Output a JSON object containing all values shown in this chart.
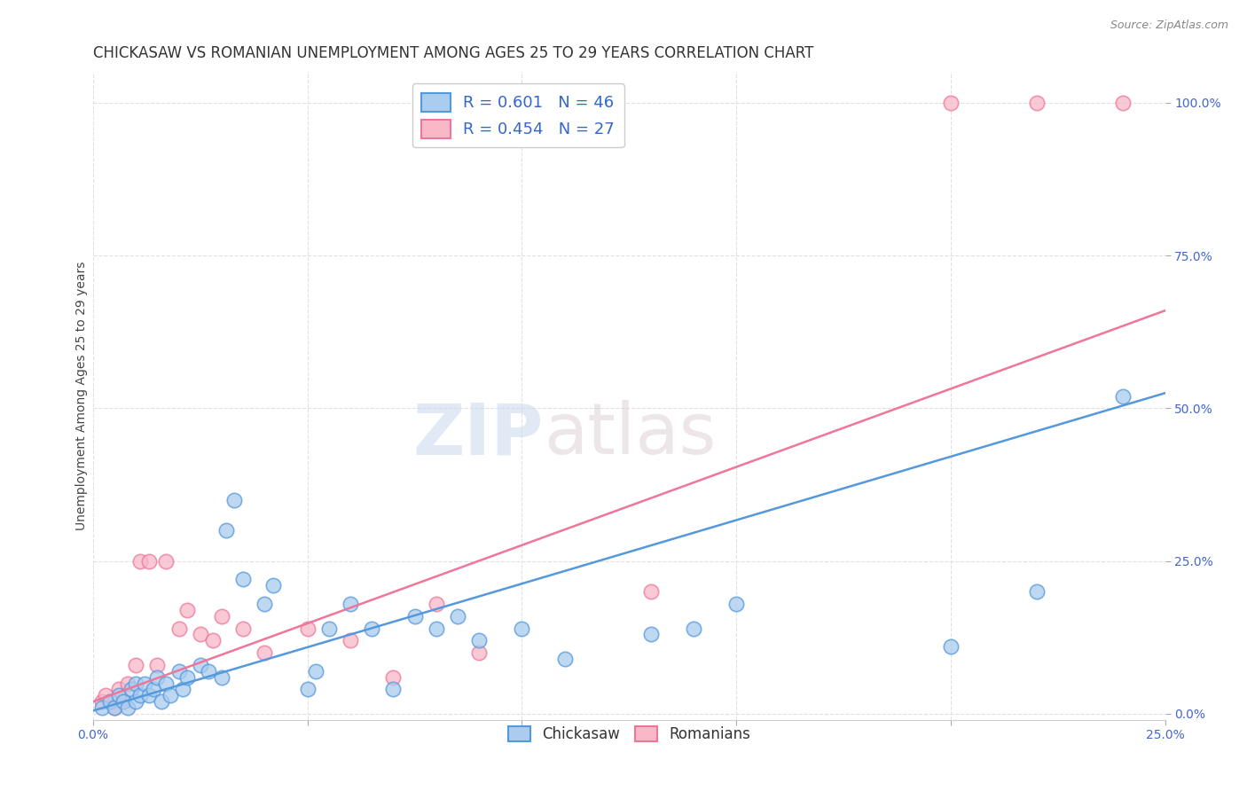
{
  "title": "CHICKASAW VS ROMANIAN UNEMPLOYMENT AMONG AGES 25 TO 29 YEARS CORRELATION CHART",
  "source": "Source: ZipAtlas.com",
  "ylabel": "Unemployment Among Ages 25 to 29 years",
  "xlim": [
    0.0,
    0.25
  ],
  "ylim": [
    -0.01,
    1.05
  ],
  "xticks": [
    0.0,
    0.05,
    0.1,
    0.15,
    0.2,
    0.25
  ],
  "xticklabels": [
    "0.0%",
    "",
    "",
    "",
    "",
    "25.0%"
  ],
  "yticks": [
    0.0,
    0.25,
    0.5,
    0.75,
    1.0
  ],
  "yticklabels": [
    "0.0%",
    "25.0%",
    "50.0%",
    "75.0%",
    "100.0%"
  ],
  "blue_color": "#aaccee",
  "pink_color": "#f8b8c8",
  "blue_line_color": "#5599dd",
  "pink_line_color": "#ee7799",
  "legend_label1": "Chickasaw",
  "legend_label2": "Romanians",
  "watermark_zip": "ZIP",
  "watermark_atlas": "atlas",
  "blue_scatter_x": [
    0.002,
    0.004,
    0.005,
    0.006,
    0.007,
    0.008,
    0.009,
    0.01,
    0.01,
    0.011,
    0.012,
    0.013,
    0.014,
    0.015,
    0.016,
    0.017,
    0.018,
    0.02,
    0.021,
    0.022,
    0.025,
    0.027,
    0.03,
    0.031,
    0.033,
    0.035,
    0.04,
    0.042,
    0.05,
    0.052,
    0.055,
    0.06,
    0.065,
    0.07,
    0.075,
    0.08,
    0.085,
    0.09,
    0.1,
    0.11,
    0.13,
    0.14,
    0.15,
    0.2,
    0.22,
    0.24
  ],
  "blue_scatter_y": [
    0.01,
    0.02,
    0.01,
    0.03,
    0.02,
    0.01,
    0.04,
    0.05,
    0.02,
    0.03,
    0.05,
    0.03,
    0.04,
    0.06,
    0.02,
    0.05,
    0.03,
    0.07,
    0.04,
    0.06,
    0.08,
    0.07,
    0.06,
    0.3,
    0.35,
    0.22,
    0.18,
    0.21,
    0.04,
    0.07,
    0.14,
    0.18,
    0.14,
    0.04,
    0.16,
    0.14,
    0.16,
    0.12,
    0.14,
    0.09,
    0.13,
    0.14,
    0.18,
    0.11,
    0.2,
    0.52
  ],
  "pink_scatter_x": [
    0.002,
    0.003,
    0.005,
    0.006,
    0.007,
    0.008,
    0.01,
    0.011,
    0.013,
    0.015,
    0.017,
    0.02,
    0.022,
    0.025,
    0.028,
    0.03,
    0.035,
    0.04,
    0.05,
    0.06,
    0.07,
    0.08,
    0.09,
    0.13,
    0.2,
    0.22,
    0.24
  ],
  "pink_scatter_y": [
    0.02,
    0.03,
    0.01,
    0.04,
    0.02,
    0.05,
    0.08,
    0.25,
    0.25,
    0.08,
    0.25,
    0.14,
    0.17,
    0.13,
    0.12,
    0.16,
    0.14,
    0.1,
    0.14,
    0.12,
    0.06,
    0.18,
    0.1,
    0.2,
    1.0,
    1.0,
    1.0
  ],
  "blue_line_x": [
    0.0,
    0.25
  ],
  "blue_line_y": [
    0.005,
    0.525
  ],
  "pink_line_x": [
    0.0,
    0.25
  ],
  "pink_line_y": [
    0.02,
    0.66
  ],
  "title_fontsize": 12,
  "axis_label_fontsize": 10,
  "tick_fontsize": 10,
  "background_color": "#ffffff",
  "grid_color": "#e0e0e0"
}
